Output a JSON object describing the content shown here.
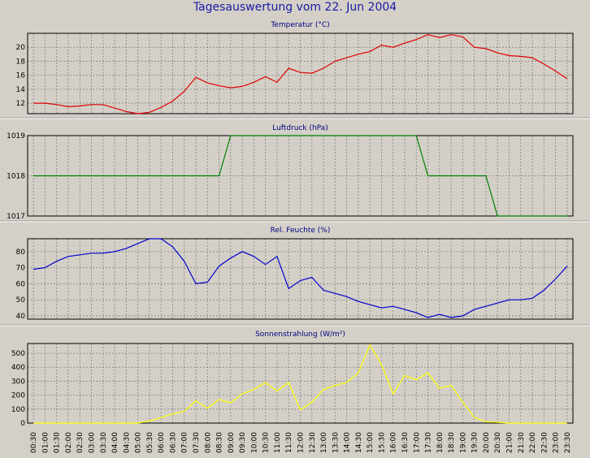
{
  "page_title": "Tagesauswertung vom 22. Jun 2004",
  "chart_data": [
    {
      "type": "line",
      "title": "Temperatur (°C)",
      "color": "#e00000",
      "x": [
        "00:30",
        "01:00",
        "01:30",
        "02:00",
        "02:30",
        "03:00",
        "03:30",
        "04:00",
        "04:30",
        "05:00",
        "05:30",
        "06:00",
        "06:30",
        "07:00",
        "07:30",
        "08:00",
        "08:30",
        "09:00",
        "09:30",
        "10:00",
        "10:30",
        "11:00",
        "11:30",
        "12:00",
        "12:30",
        "13:00",
        "13:30",
        "14:00",
        "14:30",
        "15:00",
        "15:30",
        "16:00",
        "16:30",
        "17:00",
        "17:30",
        "18:00",
        "18:30",
        "19:00",
        "19:30",
        "20:00",
        "20:30",
        "21:00",
        "21:30",
        "22:00",
        "22:30",
        "23:00",
        "23:30"
      ],
      "values": [
        12,
        12,
        11.8,
        11.5,
        11.6,
        11.8,
        11.8,
        11.3,
        10.8,
        10.5,
        10.7,
        11.4,
        12.3,
        13.7,
        15.7,
        14.9,
        14.5,
        14.2,
        14.4,
        15,
        15.8,
        15,
        17,
        16.4,
        16.3,
        17,
        18,
        18.5,
        19,
        19.4,
        20.3,
        20,
        20.6,
        21.1,
        21.8,
        21.4,
        21.8,
        21.5,
        20,
        19.8,
        19.2,
        18.8,
        18.7,
        18.5,
        17.6,
        16.6,
        15.5
      ],
      "yticks": [
        12,
        14,
        16,
        18,
        20
      ],
      "ylim": [
        10.5,
        22
      ]
    },
    {
      "type": "line",
      "title": "Luftdruck (hPa)",
      "color": "#008000",
      "x": [
        "00:30",
        "01:00",
        "01:30",
        "02:00",
        "02:30",
        "03:00",
        "03:30",
        "04:00",
        "04:30",
        "05:00",
        "05:30",
        "06:00",
        "06:30",
        "07:00",
        "07:30",
        "08:00",
        "08:30",
        "09:00",
        "09:30",
        "10:00",
        "10:30",
        "11:00",
        "11:30",
        "12:00",
        "12:30",
        "13:00",
        "13:30",
        "14:00",
        "14:30",
        "15:00",
        "15:30",
        "16:00",
        "16:30",
        "17:00",
        "17:30",
        "18:00",
        "18:30",
        "19:00",
        "19:30",
        "20:00",
        "20:30",
        "21:00",
        "21:30",
        "22:00",
        "22:30",
        "23:00",
        "23:30"
      ],
      "values": [
        1018,
        1018,
        1018,
        1018,
        1018,
        1018,
        1018,
        1018,
        1018,
        1018,
        1018,
        1018,
        1018,
        1018,
        1018,
        1018,
        1018,
        1019,
        1019,
        1019,
        1019,
        1019,
        1019,
        1019,
        1019,
        1019,
        1019,
        1019,
        1019,
        1019,
        1019,
        1019,
        1019,
        1019,
        1018,
        1018,
        1018,
        1018,
        1018,
        1018,
        1017,
        1017,
        1017,
        1017,
        1017,
        1017,
        1017
      ],
      "yticks": [
        1017,
        1018,
        1019
      ],
      "ylim": [
        1017,
        1019
      ]
    },
    {
      "type": "line",
      "title": "Rel. Feuchte (%)",
      "color": "#0000cc",
      "x": [
        "00:30",
        "01:00",
        "01:30",
        "02:00",
        "02:30",
        "03:00",
        "03:30",
        "04:00",
        "04:30",
        "05:00",
        "05:30",
        "06:00",
        "06:30",
        "07:00",
        "07:30",
        "08:00",
        "08:30",
        "09:00",
        "09:30",
        "10:00",
        "10:30",
        "11:00",
        "11:30",
        "12:00",
        "12:30",
        "13:00",
        "13:30",
        "14:00",
        "14:30",
        "15:00",
        "15:30",
        "16:00",
        "16:30",
        "17:00",
        "17:30",
        "18:00",
        "18:30",
        "19:00",
        "19:30",
        "20:00",
        "20:30",
        "21:00",
        "21:30",
        "22:00",
        "22:30",
        "23:00",
        "23:30"
      ],
      "values": [
        69,
        70,
        74,
        77,
        78,
        79,
        79,
        80,
        82,
        85,
        88,
        88,
        83,
        74,
        60,
        61,
        71,
        76,
        80,
        77,
        72,
        77,
        57,
        62,
        64,
        56,
        54,
        52,
        49,
        47,
        45,
        46,
        44,
        42,
        39,
        41,
        39,
        40,
        44,
        46,
        48,
        50,
        50,
        51,
        56,
        63,
        71
      ],
      "yticks": [
        40,
        50,
        60,
        70,
        80
      ],
      "ylim": [
        38,
        88
      ]
    },
    {
      "type": "line",
      "title": "Sonnenstrahlung (W/m²)",
      "color": "#ffff00",
      "x": [
        "00:30",
        "01:00",
        "01:30",
        "02:00",
        "02:30",
        "03:00",
        "03:30",
        "04:00",
        "04:30",
        "05:00",
        "05:30",
        "06:00",
        "06:30",
        "07:00",
        "07:30",
        "08:00",
        "08:30",
        "09:00",
        "09:30",
        "10:00",
        "10:30",
        "11:00",
        "11:30",
        "12:00",
        "12:30",
        "13:00",
        "13:30",
        "14:00",
        "14:30",
        "15:00",
        "15:30",
        "16:00",
        "16:30",
        "17:00",
        "17:30",
        "18:00",
        "18:30",
        "19:00",
        "19:30",
        "20:00",
        "20:30",
        "21:00",
        "21:30",
        "22:00",
        "22:30",
        "23:00",
        "23:30"
      ],
      "values": [
        0,
        0,
        0,
        0,
        0,
        0,
        0,
        0,
        0,
        0,
        15,
        40,
        65,
        85,
        160,
        105,
        170,
        145,
        210,
        240,
        290,
        230,
        290,
        95,
        150,
        240,
        270,
        290,
        360,
        560,
        420,
        210,
        340,
        310,
        360,
        250,
        270,
        150,
        40,
        10,
        5,
        0,
        0,
        0,
        0,
        0,
        0
      ],
      "yticks": [
        0,
        100,
        200,
        300,
        400,
        500
      ],
      "ylim": [
        0,
        570
      ]
    }
  ],
  "x_labels": [
    "00:30",
    "01:00",
    "01:30",
    "02:00",
    "02:30",
    "03:00",
    "03:30",
    "04:00",
    "04:30",
    "05:00",
    "05:30",
    "06:00",
    "06:30",
    "07:00",
    "07:30",
    "08:00",
    "08:30",
    "09:00",
    "09:30",
    "10:00",
    "10:30",
    "11:00",
    "11:30",
    "12:00",
    "12:30",
    "13:00",
    "13:30",
    "14:00",
    "14:30",
    "15:00",
    "15:30",
    "16:00",
    "16:30",
    "17:00",
    "17:30",
    "18:00",
    "18:30",
    "19:00",
    "19:30",
    "20:00",
    "20:30",
    "21:00",
    "21:30",
    "22:00",
    "22:30",
    "23:00",
    "23:30"
  ]
}
